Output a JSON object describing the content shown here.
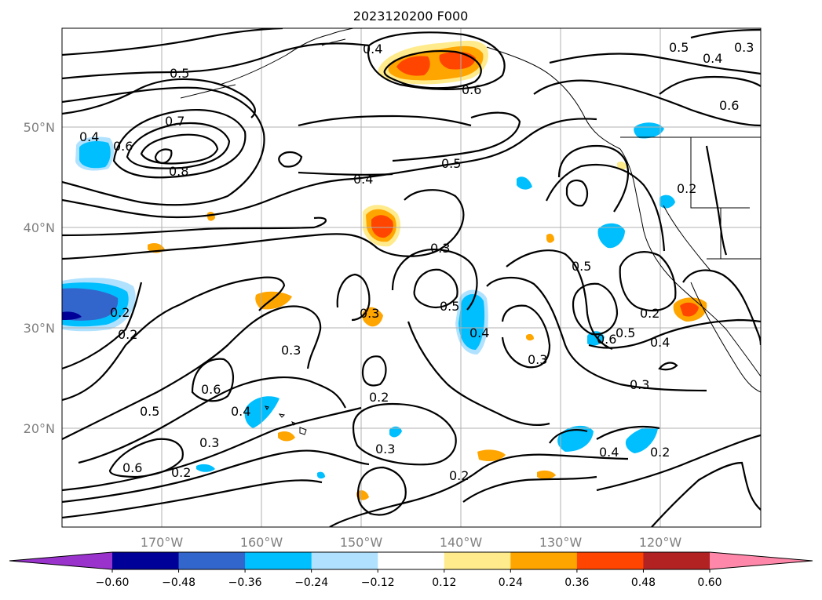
{
  "title": "2023120200 F000",
  "map": {
    "lon_labels": [
      "170°W",
      "160°W",
      "150°W",
      "140°W",
      "130°W",
      "120°W"
    ],
    "lat_labels": [
      "50°N",
      "40°N",
      "30°N",
      "20°N"
    ],
    "gridlines": true,
    "contour_labels": [
      "0.4",
      "0.5",
      "0.6",
      "0.5",
      "0.4",
      "0.3",
      "0.6",
      "0.5",
      "0.4",
      "0.6",
      "0.7",
      "0.8",
      "0.5",
      "0.4",
      "0.3",
      "0.2",
      "0.2",
      "0.2",
      "0.3",
      "0.3",
      "0.5",
      "0.4",
      "0.6",
      "0.5",
      "0.4",
      "0.2",
      "0.3",
      "0.5",
      "0.3",
      "0.6",
      "0.4",
      "0.2",
      "0.3",
      "0.2",
      "0.6",
      "0.4",
      "0.2",
      "0.2",
      "0.3"
    ]
  },
  "colorbar": {
    "colors": [
      "#9933cc",
      "#000099",
      "#3366cc",
      "#00bfff",
      "#b0e2ff",
      "#ffffff",
      "#ffeb8c",
      "#ffa500",
      "#ff4500",
      "#b22222",
      "#ff88aa"
    ],
    "tick_labels": [
      "−0.60",
      "−0.48",
      "−0.36",
      "−0.24",
      "−0.12",
      "0.12",
      "0.24",
      "0.36",
      "0.48",
      "0.60"
    ],
    "extend": "both"
  }
}
